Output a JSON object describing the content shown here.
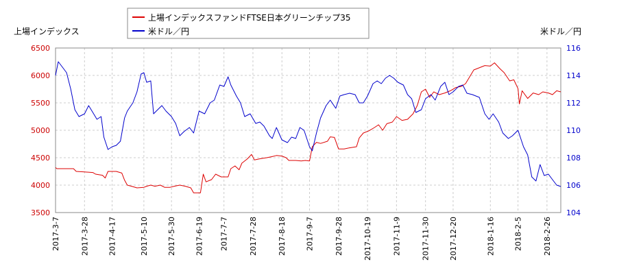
{
  "chart_data": {
    "type": "line",
    "y_left_label": "上場インデックス",
    "y_right_label": "米ドル／円",
    "y_left_range": [
      3500,
      6500
    ],
    "y_left_ticks": [
      3500,
      4000,
      4500,
      5000,
      5500,
      6000,
      6500
    ],
    "y_right_range": [
      104,
      116
    ],
    "y_right_ticks": [
      104,
      106,
      108,
      110,
      112,
      114,
      116
    ],
    "x_start": "2017-03-07",
    "x_end": "2018-03-08",
    "x_ticks": [
      "2017-3-7",
      "2017-3-28",
      "2017-4-17",
      "2017-5-10",
      "2017-5-30",
      "2017-6-19",
      "2017-7-7",
      "2017-7-28",
      "2017-8-18",
      "2017-9-7",
      "2017-9-28",
      "2017-10-19",
      "2017-11-9",
      "2017-11-30",
      "2017-12-20",
      "2018-1-16",
      "2018-2-5",
      "2018-2-26"
    ],
    "grid": true,
    "legend_position": "top-center",
    "colors": {
      "series1": "#dd0000",
      "series2": "#0000cc"
    },
    "series": [
      {
        "name": "上場インデックスファンドFTSE日本グリーンチップ35",
        "axis": "left",
        "points": [
          [
            "2017-03-07",
            4320
          ],
          [
            "2017-03-08",
            4300
          ],
          [
            "2017-03-14",
            4300
          ],
          [
            "2017-03-20",
            4300
          ],
          [
            "2017-03-22",
            4250
          ],
          [
            "2017-03-28",
            4240
          ],
          [
            "2017-04-03",
            4230
          ],
          [
            "2017-04-05",
            4200
          ],
          [
            "2017-04-10",
            4180
          ],
          [
            "2017-04-12",
            4130
          ],
          [
            "2017-04-14",
            4250
          ],
          [
            "2017-04-20",
            4250
          ],
          [
            "2017-04-24",
            4220
          ],
          [
            "2017-04-26",
            4090
          ],
          [
            "2017-04-28",
            4000
          ],
          [
            "2017-05-01",
            3980
          ],
          [
            "2017-05-05",
            3950
          ],
          [
            "2017-05-10",
            3960
          ],
          [
            "2017-05-12",
            3980
          ],
          [
            "2017-05-15",
            4000
          ],
          [
            "2017-05-18",
            3980
          ],
          [
            "2017-05-22",
            4000
          ],
          [
            "2017-05-25",
            3960
          ],
          [
            "2017-05-29",
            3960
          ],
          [
            "2017-06-01",
            3980
          ],
          [
            "2017-06-05",
            4000
          ],
          [
            "2017-06-09",
            3980
          ],
          [
            "2017-06-13",
            3950
          ],
          [
            "2017-06-15",
            3860
          ],
          [
            "2017-06-20",
            3860
          ],
          [
            "2017-06-22",
            4200
          ],
          [
            "2017-06-24",
            4060
          ],
          [
            "2017-06-28",
            4100
          ],
          [
            "2017-07-01",
            4200
          ],
          [
            "2017-07-05",
            4150
          ],
          [
            "2017-07-10",
            4150
          ],
          [
            "2017-07-12",
            4300
          ],
          [
            "2017-07-15",
            4350
          ],
          [
            "2017-07-18",
            4280
          ],
          [
            "2017-07-20",
            4400
          ],
          [
            "2017-07-24",
            4480
          ],
          [
            "2017-07-27",
            4560
          ],
          [
            "2017-07-29",
            4460
          ],
          [
            "2017-08-02",
            4480
          ],
          [
            "2017-08-07",
            4500
          ],
          [
            "2017-08-11",
            4520
          ],
          [
            "2017-08-14",
            4540
          ],
          [
            "2017-08-18",
            4530
          ],
          [
            "2017-08-21",
            4500
          ],
          [
            "2017-08-23",
            4450
          ],
          [
            "2017-08-28",
            4450
          ],
          [
            "2017-09-01",
            4440
          ],
          [
            "2017-09-04",
            4450
          ],
          [
            "2017-09-07",
            4440
          ],
          [
            "2017-09-09",
            4700
          ],
          [
            "2017-09-12",
            4780
          ],
          [
            "2017-09-15",
            4760
          ],
          [
            "2017-09-20",
            4800
          ],
          [
            "2017-09-22",
            4880
          ],
          [
            "2017-09-25",
            4870
          ],
          [
            "2017-09-28",
            4660
          ],
          [
            "2017-10-02",
            4660
          ],
          [
            "2017-10-06",
            4680
          ],
          [
            "2017-10-11",
            4700
          ],
          [
            "2017-10-13",
            4860
          ],
          [
            "2017-10-16",
            4950
          ],
          [
            "2017-10-20",
            4990
          ],
          [
            "2017-10-24",
            5050
          ],
          [
            "2017-10-27",
            5100
          ],
          [
            "2017-10-30",
            5000
          ],
          [
            "2017-11-02",
            5120
          ],
          [
            "2017-11-06",
            5150
          ],
          [
            "2017-11-09",
            5250
          ],
          [
            "2017-11-13",
            5180
          ],
          [
            "2017-11-17",
            5200
          ],
          [
            "2017-11-21",
            5300
          ],
          [
            "2017-11-24",
            5450
          ],
          [
            "2017-11-27",
            5700
          ],
          [
            "2017-11-30",
            5750
          ],
          [
            "2017-12-03",
            5600
          ],
          [
            "2017-12-06",
            5700
          ],
          [
            "2017-12-10",
            5650
          ],
          [
            "2017-12-14",
            5680
          ],
          [
            "2017-12-18",
            5720
          ],
          [
            "2017-12-22",
            5780
          ],
          [
            "2017-12-26",
            5800
          ],
          [
            "2017-12-29",
            5850
          ],
          [
            "2018-01-04",
            6100
          ],
          [
            "2018-01-09",
            6150
          ],
          [
            "2018-01-12",
            6180
          ],
          [
            "2018-01-16",
            6170
          ],
          [
            "2018-01-19",
            6230
          ],
          [
            "2018-01-23",
            6120
          ],
          [
            "2018-01-26",
            6050
          ],
          [
            "2018-01-30",
            5900
          ],
          [
            "2018-02-02",
            5920
          ],
          [
            "2018-02-05",
            5760
          ],
          [
            "2018-02-06",
            5480
          ],
          [
            "2018-02-08",
            5720
          ],
          [
            "2018-02-12",
            5580
          ],
          [
            "2018-02-16",
            5680
          ],
          [
            "2018-02-20",
            5650
          ],
          [
            "2018-02-23",
            5700
          ],
          [
            "2018-02-27",
            5680
          ],
          [
            "2018-03-02",
            5650
          ],
          [
            "2018-03-05",
            5720
          ],
          [
            "2018-03-08",
            5700
          ]
        ]
      },
      {
        "name": "米ドル／円",
        "axis": "right",
        "points": [
          [
            "2017-03-07",
            114.0
          ],
          [
            "2017-03-09",
            115.0
          ],
          [
            "2017-03-12",
            114.6
          ],
          [
            "2017-03-15",
            114.2
          ],
          [
            "2017-03-18",
            113.0
          ],
          [
            "2017-03-21",
            111.5
          ],
          [
            "2017-03-24",
            111.0
          ],
          [
            "2017-03-28",
            111.2
          ],
          [
            "2017-03-31",
            111.8
          ],
          [
            "2017-04-03",
            111.3
          ],
          [
            "2017-04-06",
            110.8
          ],
          [
            "2017-04-09",
            111.0
          ],
          [
            "2017-04-11",
            109.5
          ],
          [
            "2017-04-14",
            108.6
          ],
          [
            "2017-04-17",
            108.8
          ],
          [
            "2017-04-20",
            108.9
          ],
          [
            "2017-04-23",
            109.2
          ],
          [
            "2017-04-26",
            110.9
          ],
          [
            "2017-04-28",
            111.4
          ],
          [
            "2017-05-02",
            112.0
          ],
          [
            "2017-05-05",
            112.8
          ],
          [
            "2017-05-08",
            114.1
          ],
          [
            "2017-05-10",
            114.2
          ],
          [
            "2017-05-12",
            113.5
          ],
          [
            "2017-05-15",
            113.6
          ],
          [
            "2017-05-17",
            111.2
          ],
          [
            "2017-05-19",
            111.4
          ],
          [
            "2017-05-23",
            111.8
          ],
          [
            "2017-05-26",
            111.4
          ],
          [
            "2017-05-30",
            111.0
          ],
          [
            "2017-06-02",
            110.5
          ],
          [
            "2017-06-05",
            109.6
          ],
          [
            "2017-06-08",
            109.9
          ],
          [
            "2017-06-12",
            110.2
          ],
          [
            "2017-06-15",
            109.8
          ],
          [
            "2017-06-19",
            111.4
          ],
          [
            "2017-06-23",
            111.2
          ],
          [
            "2017-06-27",
            112.0
          ],
          [
            "2017-06-30",
            112.2
          ],
          [
            "2017-07-04",
            113.3
          ],
          [
            "2017-07-07",
            113.2
          ],
          [
            "2017-07-10",
            113.9
          ],
          [
            "2017-07-12",
            113.3
          ],
          [
            "2017-07-16",
            112.5
          ],
          [
            "2017-07-19",
            112.0
          ],
          [
            "2017-07-22",
            111.0
          ],
          [
            "2017-07-26",
            111.2
          ],
          [
            "2017-07-30",
            110.5
          ],
          [
            "2017-08-02",
            110.6
          ],
          [
            "2017-08-05",
            110.3
          ],
          [
            "2017-08-09",
            109.6
          ],
          [
            "2017-08-11",
            109.4
          ],
          [
            "2017-08-14",
            110.2
          ],
          [
            "2017-08-18",
            109.3
          ],
          [
            "2017-08-22",
            109.1
          ],
          [
            "2017-08-25",
            109.5
          ],
          [
            "2017-08-28",
            109.4
          ],
          [
            "2017-08-31",
            110.2
          ],
          [
            "2017-09-03",
            110.0
          ],
          [
            "2017-09-07",
            108.8
          ],
          [
            "2017-09-09",
            108.5
          ],
          [
            "2017-09-12",
            109.8
          ],
          [
            "2017-09-15",
            110.9
          ],
          [
            "2017-09-19",
            111.8
          ],
          [
            "2017-09-22",
            112.2
          ],
          [
            "2017-09-26",
            111.6
          ],
          [
            "2017-09-29",
            112.5
          ],
          [
            "2017-10-02",
            112.6
          ],
          [
            "2017-10-06",
            112.7
          ],
          [
            "2017-10-10",
            112.6
          ],
          [
            "2017-10-13",
            112.0
          ],
          [
            "2017-10-16",
            112.0
          ],
          [
            "2017-10-19",
            112.5
          ],
          [
            "2017-10-23",
            113.4
          ],
          [
            "2017-10-26",
            113.6
          ],
          [
            "2017-10-29",
            113.4
          ],
          [
            "2017-11-01",
            113.8
          ],
          [
            "2017-11-04",
            114.0
          ],
          [
            "2017-11-07",
            113.8
          ],
          [
            "2017-11-10",
            113.5
          ],
          [
            "2017-11-14",
            113.3
          ],
          [
            "2017-11-17",
            112.6
          ],
          [
            "2017-11-20",
            112.3
          ],
          [
            "2017-11-23",
            111.3
          ],
          [
            "2017-11-27",
            111.5
          ],
          [
            "2017-11-30",
            112.3
          ],
          [
            "2017-12-04",
            112.6
          ],
          [
            "2017-12-07",
            112.2
          ],
          [
            "2017-12-11",
            113.2
          ],
          [
            "2017-12-14",
            113.5
          ],
          [
            "2017-12-17",
            112.6
          ],
          [
            "2017-12-20",
            112.8
          ],
          [
            "2017-12-24",
            113.2
          ],
          [
            "2017-12-27",
            113.3
          ],
          [
            "2017-12-30",
            112.7
          ],
          [
            "2018-01-03",
            112.6
          ],
          [
            "2018-01-08",
            112.4
          ],
          [
            "2018-01-12",
            111.2
          ],
          [
            "2018-01-15",
            110.8
          ],
          [
            "2018-01-18",
            111.2
          ],
          [
            "2018-01-22",
            110.6
          ],
          [
            "2018-01-25",
            109.8
          ],
          [
            "2018-01-29",
            109.4
          ],
          [
            "2018-02-01",
            109.6
          ],
          [
            "2018-02-05",
            110.0
          ],
          [
            "2018-02-07",
            109.4
          ],
          [
            "2018-02-09",
            108.8
          ],
          [
            "2018-02-12",
            108.2
          ],
          [
            "2018-02-15",
            106.6
          ],
          [
            "2018-02-18",
            106.3
          ],
          [
            "2018-02-21",
            107.5
          ],
          [
            "2018-02-24",
            106.7
          ],
          [
            "2018-02-27",
            106.8
          ],
          [
            "2018-03-02",
            106.4
          ],
          [
            "2018-03-05",
            106.0
          ],
          [
            "2018-03-08",
            105.9
          ]
        ]
      }
    ]
  }
}
